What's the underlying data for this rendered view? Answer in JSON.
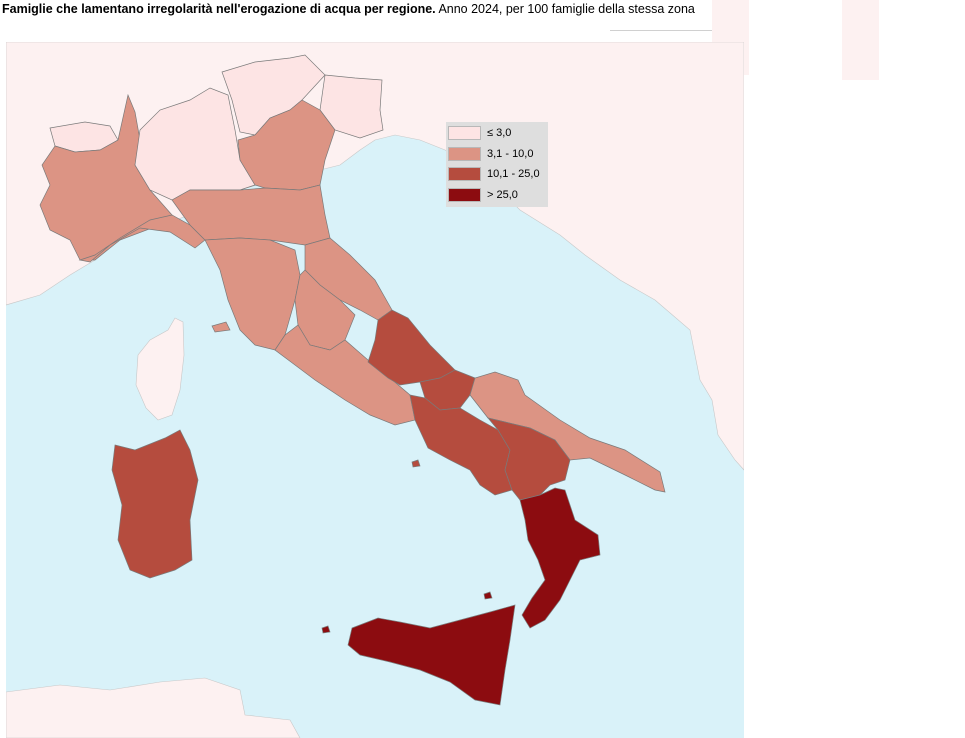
{
  "title": {
    "bold": "Famiglie che lamentano irregolarità nell'erogazione di acqua per regione.",
    "rest": " Anno 2024, per 100 famiglie della stessa zona"
  },
  "legend": [
    {
      "label": "≤ 3,0",
      "color": "#fde4e4"
    },
    {
      "label": "3,1 - 10,0",
      "color": "#dc9484"
    },
    {
      "label": "10,1 - 25,0",
      "color": "#b54c3e"
    },
    {
      "label": "> 25,0",
      "color": "#8c0c10"
    }
  ],
  "colors": {
    "sea": "#d9f2f9",
    "foreign_land": "#fdf1f1",
    "border": "#7a7a7a"
  },
  "regions": [
    {
      "name": "Valle d'Aosta",
      "class": "≤ 3,0"
    },
    {
      "name": "Lombardia",
      "class": "≤ 3,0"
    },
    {
      "name": "Trentino-Alto Adige",
      "class": "≤ 3,0"
    },
    {
      "name": "Friuli-Venezia Giulia",
      "class": "≤ 3,0"
    },
    {
      "name": "Piemonte",
      "class": "3,1 - 10,0"
    },
    {
      "name": "Veneto",
      "class": "3,1 - 10,0"
    },
    {
      "name": "Liguria",
      "class": "3,1 - 10,0"
    },
    {
      "name": "Emilia-Romagna",
      "class": "3,1 - 10,0"
    },
    {
      "name": "Toscana",
      "class": "3,1 - 10,0"
    },
    {
      "name": "Marche",
      "class": "3,1 - 10,0"
    },
    {
      "name": "Umbria",
      "class": "3,1 - 10,0"
    },
    {
      "name": "Lazio",
      "class": "3,1 - 10,0"
    },
    {
      "name": "Puglia",
      "class": "3,1 - 10,0"
    },
    {
      "name": "Abruzzo",
      "class": "10,1 - 25,0"
    },
    {
      "name": "Molise",
      "class": "10,1 - 25,0"
    },
    {
      "name": "Campania",
      "class": "10,1 - 25,0"
    },
    {
      "name": "Basilicata",
      "class": "10,1 - 25,0"
    },
    {
      "name": "Sardegna",
      "class": "10,1 - 25,0"
    },
    {
      "name": "Calabria",
      "class": "> 25,0"
    },
    {
      "name": "Sicilia",
      "class": "> 25,0"
    }
  ]
}
